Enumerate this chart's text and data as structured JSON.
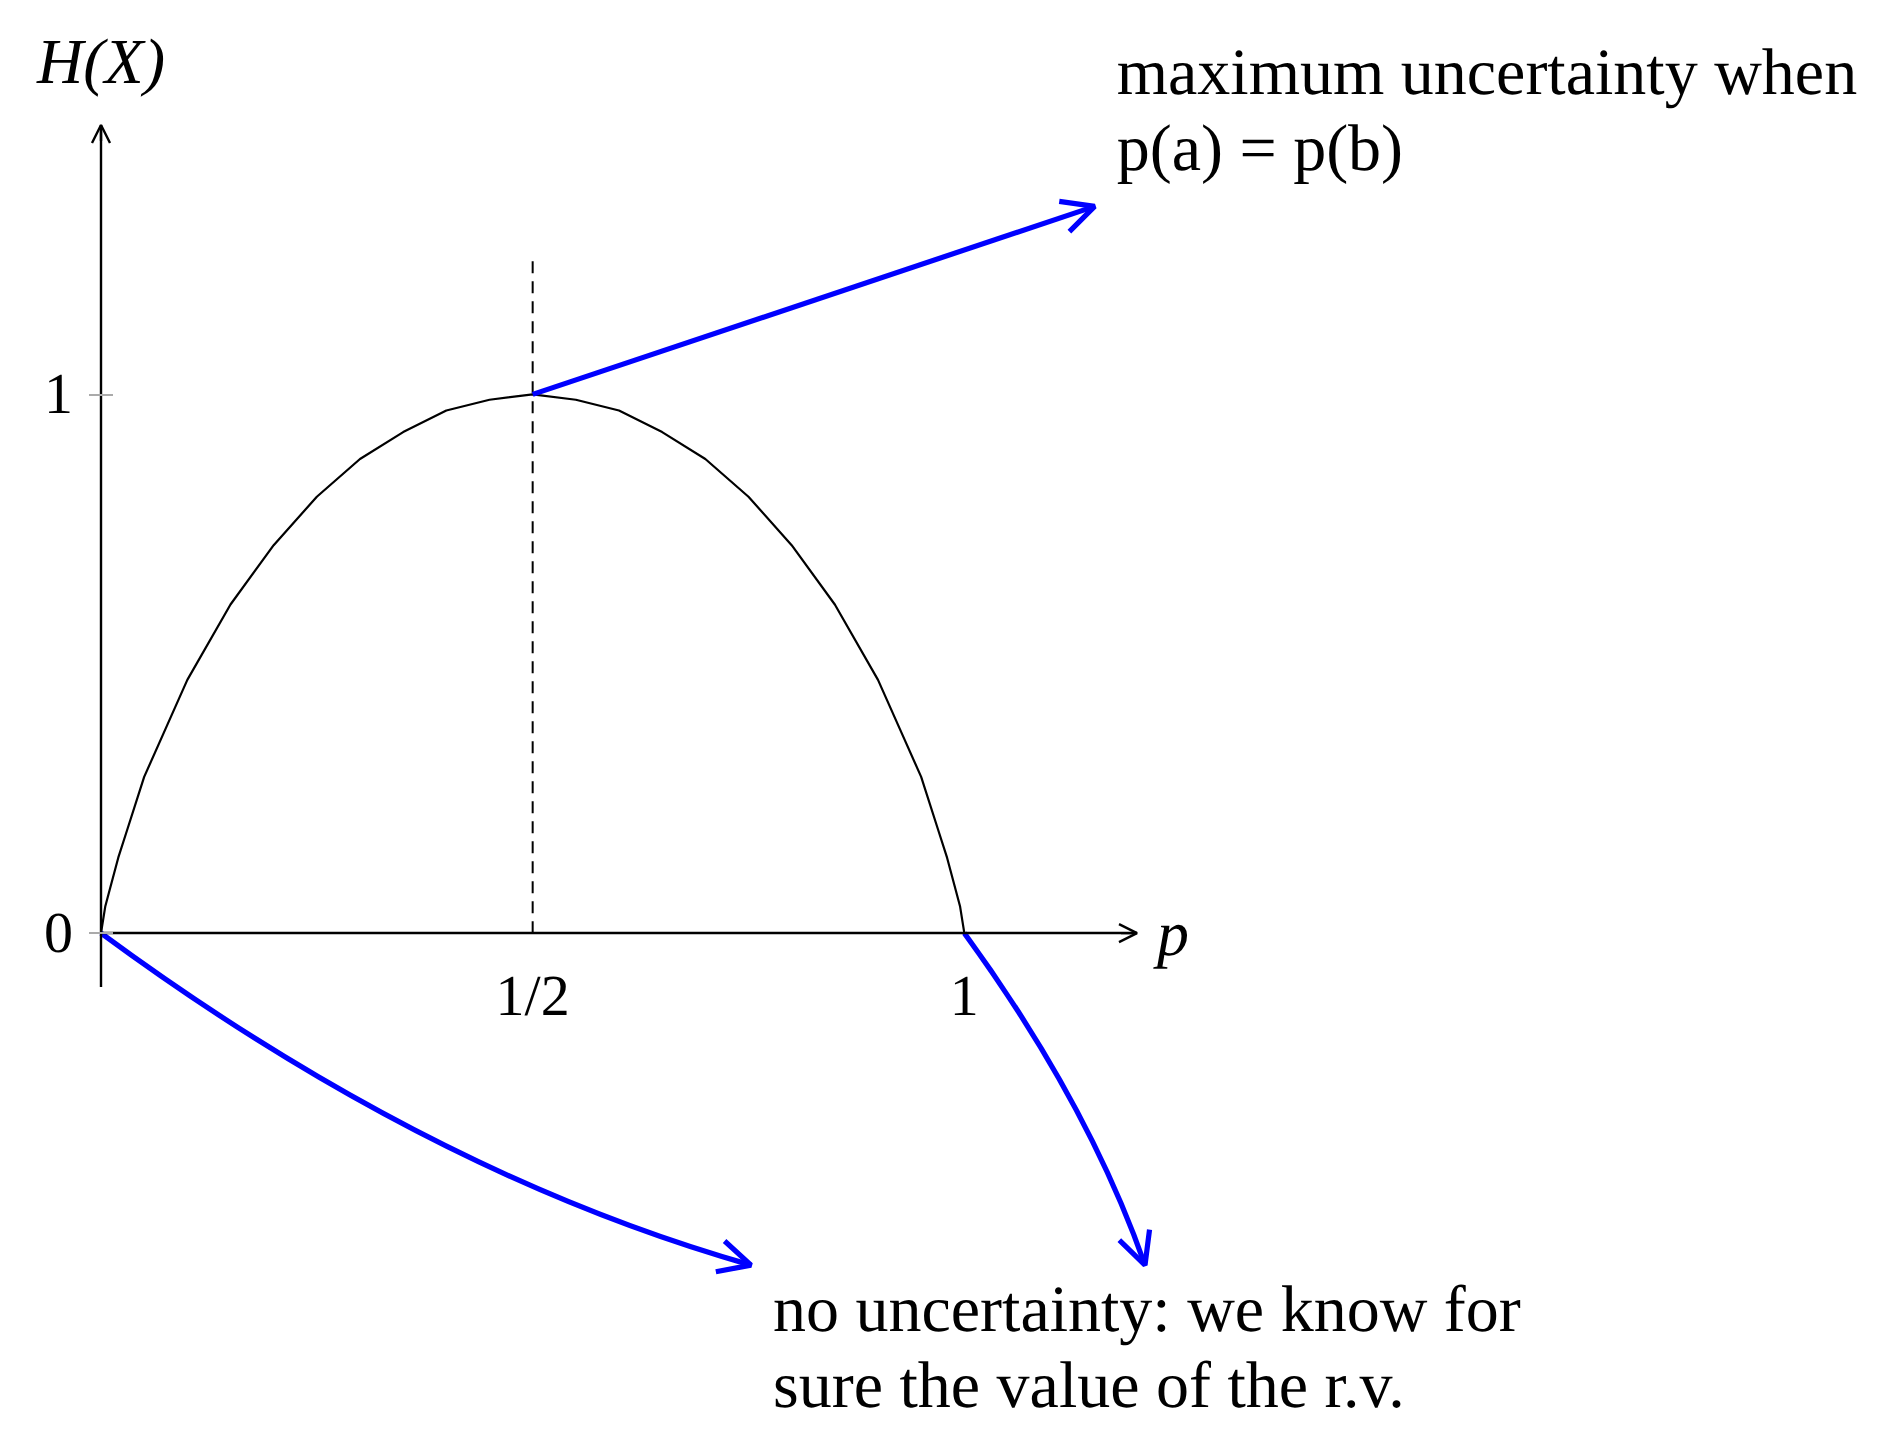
{
  "chart_data": {
    "type": "line",
    "xlabel": "p",
    "ylabel": "H(X)",
    "x": [
      0,
      0.005,
      0.01,
      0.02,
      0.03,
      0.05,
      0.075,
      0.1,
      0.15,
      0.2,
      0.25,
      0.3,
      0.35,
      0.4,
      0.45,
      0.5,
      0.55,
      0.6,
      0.65,
      0.7,
      0.75,
      0.8,
      0.85,
      0.9,
      0.925,
      0.95,
      0.97,
      0.98,
      0.99,
      0.995,
      1
    ],
    "series": [
      {
        "color": "#000000",
        "values": [
          0,
          0.05,
          0.08,
          0.14,
          0.19,
          0.29,
          0.38,
          0.47,
          0.61,
          0.72,
          0.81,
          0.88,
          0.93,
          0.97,
          0.99,
          1,
          0.99,
          0.97,
          0.93,
          0.88,
          0.81,
          0.72,
          0.61,
          0.47,
          0.38,
          0.29,
          0.19,
          0.14,
          0.08,
          0.05,
          0
        ]
      }
    ],
    "xlim": [
      0,
      1.2
    ],
    "ylim": [
      -0.1,
      1.5
    ],
    "xticks": [
      {
        "value": 0.5,
        "label": "1/2"
      },
      1
    ],
    "yticks": [
      0,
      1
    ],
    "ref_lines": [
      {
        "axis": "x",
        "value": 0.5,
        "color": "#000000",
        "line_style": "dashed"
      }
    ],
    "annotations": [
      {
        "text": "maximum uncertainty when p(a) = p(b)",
        "x": 0.5,
        "y": 1
      },
      {
        "text": "no uncertainty: we know for sure the value of the r.v.",
        "x": 0,
        "y": 0
      }
    ],
    "grid": false
  }
}
